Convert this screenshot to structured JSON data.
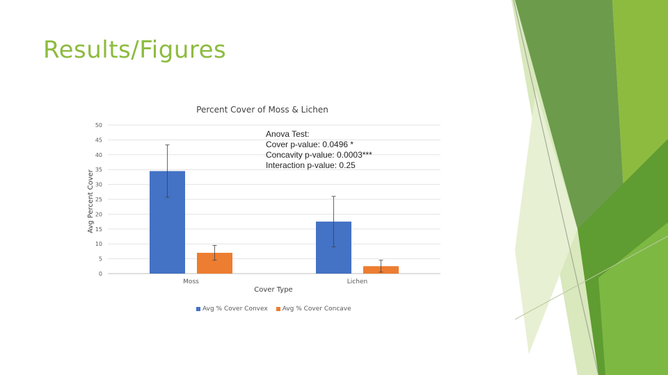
{
  "slide": {
    "title": "Results/Figures"
  },
  "theme": {
    "green_light": "#c8df9e",
    "green_mid": "#8dbb3f",
    "green_dark": "#5b9a2e",
    "green_deep": "#4e8b25",
    "green_olive": "#6b9b4b"
  },
  "chart_data": {
    "type": "bar",
    "title": "Percent Cover of Moss & Lichen",
    "xlabel": "Cover Type",
    "ylabel": "Avg Percent Cover",
    "ylim": [
      0,
      50
    ],
    "yticks": [
      0,
      5,
      10,
      15,
      20,
      25,
      30,
      35,
      40,
      45,
      50
    ],
    "categories": [
      "Moss",
      "Lichen"
    ],
    "series": [
      {
        "name": "Avg % Cover Convex",
        "color": "#4472c4",
        "values": [
          34.5,
          17.5
        ],
        "error": [
          8.8,
          8.5
        ]
      },
      {
        "name": "Avg % Cover Concave",
        "color": "#ed7d31",
        "values": [
          7,
          2.5
        ],
        "error": [
          2.5,
          2.0
        ]
      }
    ],
    "grid": true,
    "legend_position": "bottom",
    "annotation": {
      "lines": [
        "Anova Test:",
        "Cover p-value: 0.0496 *",
        "Concavity p-value: 0.0003***",
        "Interaction p-value: 0.25"
      ]
    }
  }
}
